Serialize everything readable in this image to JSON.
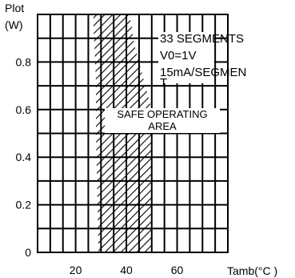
{
  "chart_data": {
    "type": "area",
    "ylabel_line1": "Plot",
    "ylabel_line2": "(W)",
    "xlabel": "Tamb(°C )",
    "xlim": [
      5,
      80
    ],
    "ylim": [
      0,
      1.0
    ],
    "x_minor_step": 5,
    "y_minor_step": 0.1,
    "x_ticks": [
      {
        "value": 20,
        "label": "20"
      },
      {
        "value": 40,
        "label": "40"
      },
      {
        "value": 60,
        "label": "60"
      }
    ],
    "y_ticks": [
      {
        "value": 0,
        "label": "0"
      },
      {
        "value": 0.2,
        "label": "0.2"
      },
      {
        "value": 0.4,
        "label": "0.4"
      },
      {
        "value": 0.6,
        "label": "0.6"
      },
      {
        "value": 0.8,
        "label": "0.8"
      }
    ],
    "grid": true,
    "safe_area_boundary": [
      {
        "x": 27,
        "y": 1.0
      },
      {
        "x": 27,
        "y": 0.96
      },
      {
        "x": 28,
        "y": 0.72
      },
      {
        "x": 28,
        "y": 0.5
      },
      {
        "x": 29,
        "y": 0.0
      },
      {
        "x": 50,
        "y": 0.0
      },
      {
        "x": 50,
        "y": 0.6
      },
      {
        "x": 43,
        "y": 0.88
      },
      {
        "x": 42,
        "y": 0.96
      },
      {
        "x": 41,
        "y": 1.0
      }
    ],
    "safe_area_label_lines": [
      "SAFE OPERATING",
      "AREA"
    ],
    "annotation_lines": [
      "33 SEGMENTS",
      "V0=1V",
      "15mA/SEGMEN",
      "T"
    ]
  }
}
